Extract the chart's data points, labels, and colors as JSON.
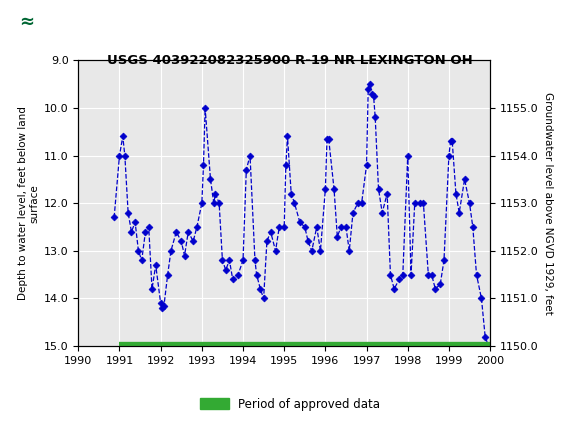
{
  "title": "USGS 403922082325900 R-19 NR LEXINGTON OH",
  "ylabel_left": "Depth to water level, feet below land\nsurface",
  "ylabel_right": "Groundwater level above NGVD 1929, feet",
  "ylim_left": [
    15.0,
    9.0
  ],
  "ylim_right": [
    1150.0,
    1156.0
  ],
  "yticks_left": [
    9.0,
    10.0,
    11.0,
    12.0,
    13.0,
    14.0,
    15.0
  ],
  "yticks_right": [
    1150.0,
    1151.0,
    1152.0,
    1153.0,
    1154.0,
    1155.0
  ],
  "xlim": [
    1990,
    2000
  ],
  "xticks": [
    1990,
    1991,
    1992,
    1993,
    1994,
    1995,
    1996,
    1997,
    1998,
    1999,
    2000
  ],
  "header_color": "#006633",
  "line_color": "#0000cc",
  "approved_color": "#33aa33",
  "bg_color": "#ffffff",
  "plot_bg_color": "#e8e8e8",
  "data_x": [
    1990.87,
    1991.0,
    1991.08,
    1991.13,
    1991.21,
    1991.29,
    1991.38,
    1991.46,
    1991.54,
    1991.63,
    1991.71,
    1991.79,
    1991.88,
    1992.0,
    1992.04,
    1992.08,
    1992.17,
    1992.25,
    1992.38,
    1992.5,
    1992.58,
    1992.67,
    1992.79,
    1992.88,
    1993.0,
    1993.04,
    1993.08,
    1993.21,
    1993.29,
    1993.33,
    1993.42,
    1993.5,
    1993.58,
    1993.67,
    1993.75,
    1993.88,
    1994.0,
    1994.08,
    1994.17,
    1994.29,
    1994.33,
    1994.42,
    1994.5,
    1994.58,
    1994.67,
    1994.79,
    1994.88,
    1995.0,
    1995.04,
    1995.08,
    1995.17,
    1995.25,
    1995.38,
    1995.5,
    1995.58,
    1995.67,
    1995.79,
    1995.88,
    1996.0,
    1996.04,
    1996.08,
    1996.21,
    1996.29,
    1996.38,
    1996.5,
    1996.58,
    1996.67,
    1996.79,
    1996.88,
    1997.0,
    1997.04,
    1997.08,
    1997.13,
    1997.17,
    1997.21,
    1997.29,
    1997.38,
    1997.5,
    1997.58,
    1997.67,
    1997.79,
    1997.88,
    1998.0,
    1998.08,
    1998.17,
    1998.29,
    1998.38,
    1998.5,
    1998.58,
    1998.67,
    1998.79,
    1998.88,
    1999.0,
    1999.04,
    1999.08,
    1999.17,
    1999.25,
    1999.38,
    1999.5,
    1999.58,
    1999.67,
    1999.79,
    1999.88,
    1999.96
  ],
  "data_y": [
    12.3,
    11.0,
    10.6,
    11.0,
    12.2,
    12.6,
    12.4,
    13.0,
    13.2,
    12.6,
    12.5,
    13.8,
    13.3,
    14.1,
    14.2,
    14.15,
    13.5,
    13.0,
    12.6,
    12.8,
    13.1,
    12.6,
    12.8,
    12.5,
    12.0,
    11.2,
    10.0,
    11.5,
    12.0,
    11.8,
    12.0,
    13.2,
    13.4,
    13.2,
    13.6,
    13.5,
    13.2,
    11.3,
    11.0,
    13.2,
    13.5,
    13.8,
    14.0,
    12.8,
    12.6,
    13.0,
    12.5,
    12.5,
    11.2,
    10.6,
    11.8,
    12.0,
    12.4,
    12.5,
    12.8,
    13.0,
    12.5,
    13.0,
    11.7,
    10.65,
    10.65,
    11.7,
    12.7,
    12.5,
    12.5,
    13.0,
    12.2,
    12.0,
    12.0,
    11.2,
    9.6,
    9.5,
    9.7,
    9.75,
    10.2,
    11.7,
    12.2,
    11.8,
    13.5,
    13.8,
    13.6,
    13.5,
    11.0,
    13.5,
    12.0,
    12.0,
    12.0,
    13.5,
    13.5,
    13.8,
    13.7,
    13.2,
    11.0,
    10.7,
    10.7,
    11.8,
    12.2,
    11.5,
    12.0,
    12.5,
    13.5,
    14.0,
    14.8,
    15.0
  ]
}
